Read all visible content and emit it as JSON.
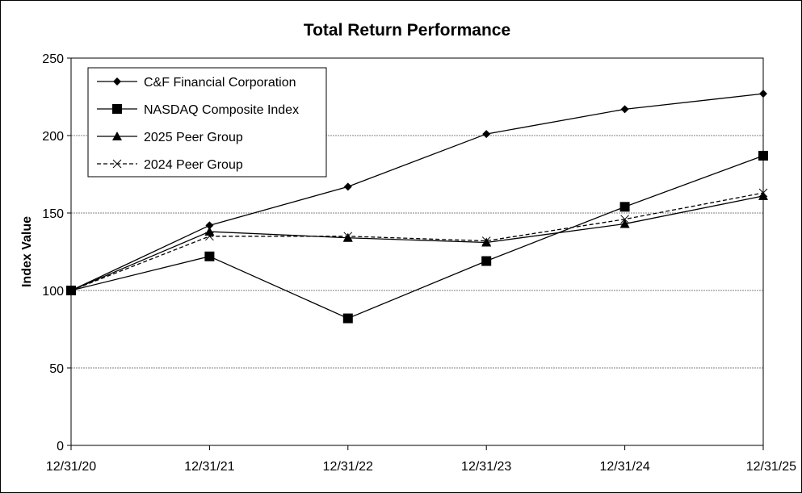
{
  "chart_data": {
    "type": "line",
    "title": "Total Return Performance",
    "xlabel": "",
    "ylabel": "Index Value",
    "x": [
      "12/31/20",
      "12/31/21",
      "12/31/22",
      "12/31/23",
      "12/31/24",
      "12/31/25"
    ],
    "ylim": [
      0,
      250
    ],
    "yticks": [
      0,
      50,
      100,
      150,
      200,
      250
    ],
    "grid": "horizontal",
    "legend_position": "top-left",
    "series": [
      {
        "name": "C&F Financial Corporation",
        "marker": "diamond",
        "dash": "solid",
        "values": [
          100,
          142,
          167,
          201,
          217,
          227
        ]
      },
      {
        "name": "NASDAQ Composite Index",
        "marker": "square",
        "dash": "solid",
        "values": [
          100,
          122,
          82,
          119,
          154,
          187
        ]
      },
      {
        "name": "2025 Peer Group",
        "marker": "triangle",
        "dash": "solid",
        "values": [
          100,
          138,
          134,
          131,
          143,
          161
        ]
      },
      {
        "name": "2024 Peer Group",
        "marker": "x",
        "dash": "dashed",
        "values": [
          100,
          135,
          135,
          132,
          146,
          163
        ]
      }
    ],
    "colors": {
      "line": "#000000",
      "grid": "#808080",
      "background": "#ffffff"
    }
  }
}
